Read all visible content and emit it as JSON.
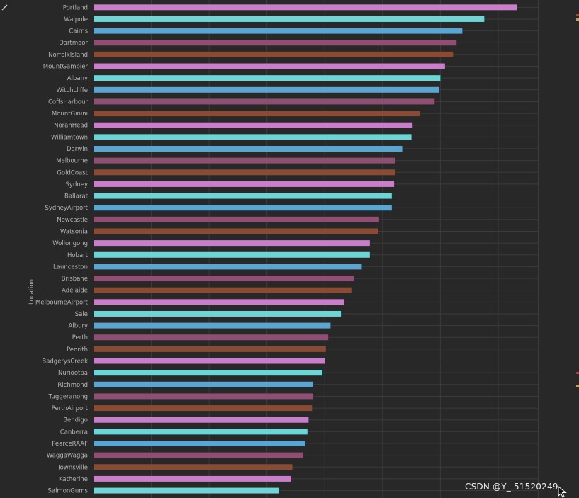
{
  "chart_data": {
    "type": "bar",
    "orientation": "horizontal",
    "ylabel": "Location",
    "xlabel": "",
    "xlim": [
      0,
      385
    ],
    "grid": true,
    "legend": "none",
    "palette": [
      "#c87ec8",
      "#6dd5d5",
      "#5aa6d0",
      "#8f4f73",
      "#8a4b34"
    ],
    "categories": [
      "Portland",
      "Walpole",
      "Cairns",
      "Dartmoor",
      "NorfolkIsland",
      "MountGambier",
      "Albany",
      "Witchcliffe",
      "CoffsHarbour",
      "MountGinini",
      "NorahHead",
      "Williamtown",
      "Darwin",
      "Melbourne",
      "GoldCoast",
      "Sydney",
      "Ballarat",
      "SydneyAirport",
      "Newcastle",
      "Watsonia",
      "Wollongong",
      "Hobart",
      "Launceston",
      "Brisbane",
      "Adelaide",
      "MelbourneAirport",
      "Sale",
      "Albury",
      "Perth",
      "Penrith",
      "BadgerysCreek",
      "Nuriootpa",
      "Richmond",
      "Tuggeranong",
      "PerthAirport",
      "Bendigo",
      "Canberra",
      "PearceRAAF",
      "WaggaWagga",
      "Townsville",
      "Katherine",
      "SalmonGums"
    ],
    "values": [
      366,
      338,
      319,
      314,
      311,
      304,
      300,
      299,
      295,
      282,
      276,
      275,
      267,
      261,
      261,
      260,
      258,
      258,
      247,
      246,
      239,
      239,
      232,
      225,
      223,
      217,
      214,
      205,
      203,
      201,
      200,
      198,
      190,
      190,
      189,
      186,
      185,
      183,
      181,
      172,
      171,
      160
    ]
  },
  "watermark": "CSDN @Y_ 51520249",
  "icons": {
    "corner": "pencil-icon",
    "cursor": "mouse-pointer-icon"
  }
}
